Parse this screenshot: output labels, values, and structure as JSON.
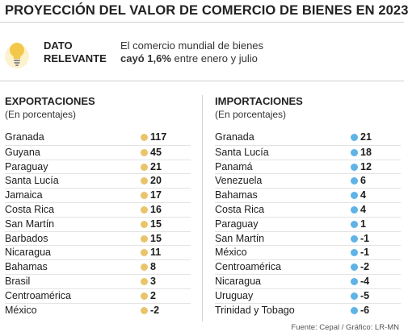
{
  "title": "PROYECCIÓN DEL VALOR DE COMERCIO DE BIENES EN 2023",
  "highlight": {
    "label_line1": "DATO",
    "label_line2": "RELEVANTE",
    "text_line1": "El comercio mundial de bienes",
    "text_bold": "cayó 1,6%",
    "text_rest": " entre enero y julio"
  },
  "colors": {
    "exports_dot": "#e9c46a",
    "imports_dot": "#5fb3e6",
    "bulb": "#f3c74a"
  },
  "source": "Fuente: Cepal / Gráfico: LR-MN",
  "chart_data": [
    {
      "type": "table",
      "title": "EXPORTACIONES",
      "subtitle": "(En porcentajes)",
      "categories": [
        "Granada",
        "Guyana",
        "Paraguay",
        "Santa Lucía",
        "Jamaica",
        "Costa Rica",
        "San Martín",
        "Barbados",
        "Nicaragua",
        "Bahamas",
        "Brasil",
        "Centroamérica",
        "México"
      ],
      "values": [
        117,
        45,
        21,
        20,
        17,
        16,
        15,
        15,
        11,
        8,
        3,
        2,
        -2
      ]
    },
    {
      "type": "table",
      "title": "IMPORTACIONES",
      "subtitle": "(En porcentajes)",
      "categories": [
        "Granada",
        "Santa Lucía",
        "Panamá",
        "Venezuela",
        "Bahamas",
        "Costa Rica",
        "Paraguay",
        "San Martín",
        "México",
        "Centroamérica",
        "Nicaragua",
        "Uruguay",
        "Trinidad y Tobago"
      ],
      "values": [
        21,
        18,
        12,
        6,
        4,
        4,
        1,
        -1,
        -1,
        -2,
        -4,
        -5,
        -6
      ]
    }
  ]
}
